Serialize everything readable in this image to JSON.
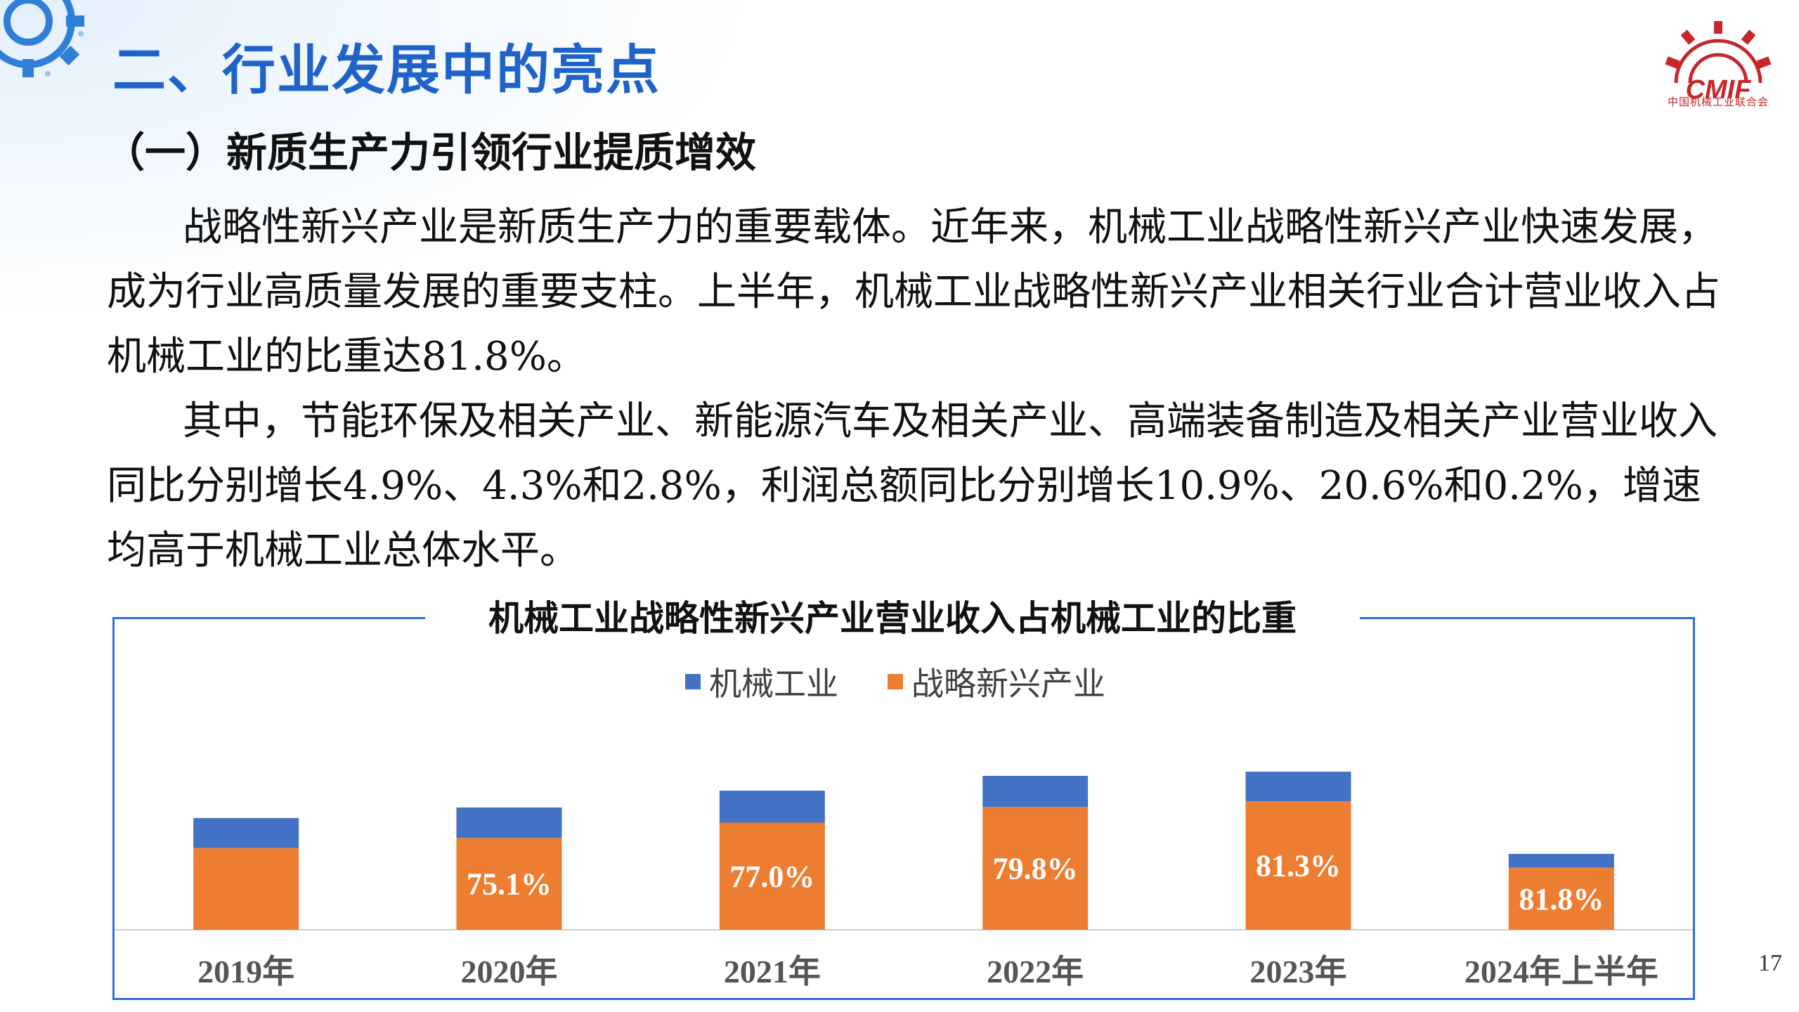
{
  "slide": {
    "title": "二、行业发展中的亮点",
    "subtitle": "（一）新质生产力引领行业提质增效",
    "paragraphs": [
      "战略性新兴产业是新质生产力的重要载体。近年来，机械工业战略性新兴产业快速发展，成为行业高质量发展的重要支柱。上半年，机械工业战略性新兴产业相关行业合计营业收入占机械工业的比重达81.8%。",
      "其中，节能环保及相关产业、新能源汽车及相关产业、高端装备制造及相关产业营业收入同比分别增长4.9%、4.3%和2.8%，利润总额同比分别增长10.9%、20.6%和0.2%，增速均高于机械工业总体水平。"
    ],
    "page_number": "17"
  },
  "logo": {
    "text": "CMIF",
    "caption": "中国机械工业联合会"
  },
  "colors": {
    "title_blue": "#1f63c8",
    "machinery_blue": "#4472c4",
    "strategic_orange": "#ed7d31",
    "logo_red": "#c8262b"
  },
  "chart_data": {
    "type": "bar",
    "stacked": true,
    "title": "机械工业战略性新兴产业营业收入占机械工业的比重",
    "legend_position": "top",
    "categories": [
      "2019年",
      "2020年",
      "2021年",
      "2022年",
      "2023年",
      "2024年上半年"
    ],
    "series": [
      {
        "name": "战略新兴产业",
        "color": "#ed7d31",
        "values": [
          73.3,
          75.1,
          77.0,
          79.8,
          81.3,
          81.8
        ],
        "labels": [
          "",
          "75.1%",
          "77.0%",
          "79.8%",
          "81.3%",
          "81.8%"
        ]
      },
      {
        "name": "机械工业",
        "color": "#4472c4",
        "values": [
          26.7,
          24.9,
          23.0,
          20.2,
          18.7,
          18.2
        ]
      }
    ],
    "relative_scale": [
      0.53,
      0.58,
      0.66,
      0.73,
      0.75,
      0.36
    ],
    "grid": false
  }
}
